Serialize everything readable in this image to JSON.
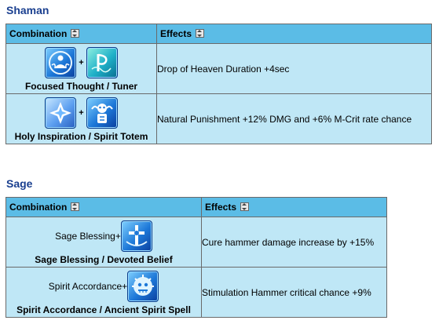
{
  "sections": [
    {
      "title": "Shaman",
      "headers": {
        "combination": "Combination",
        "effects": "Effects"
      },
      "rows": [
        {
          "lead": "",
          "label": "Focused Thought / Tuner",
          "icons": [
            "focused-thought-icon",
            "tuner-icon"
          ],
          "effect": "Drop of Heaven Duration +4sec"
        },
        {
          "lead": "",
          "label": "Holy Inspiration / Spirit Totem",
          "icons": [
            "holy-inspiration-icon",
            "spirit-totem-icon"
          ],
          "effect": "Natural Punishment +12% DMG and +6% M-Crit rate chance"
        }
      ]
    },
    {
      "title": "Sage",
      "headers": {
        "combination": "Combination",
        "effects": "Effects"
      },
      "rows": [
        {
          "lead": "Sage Blessing+",
          "label": "Sage Blessing / Devoted Belief",
          "icons": [
            "devoted-belief-icon"
          ],
          "effect": "Cure hammer damage increase by +15%"
        },
        {
          "lead": "Spirit Accordance+",
          "label": "Spirit Accordance / Ancient Spirit Spell",
          "icons": [
            "ancient-spirit-spell-icon"
          ],
          "effect": "Stimulation Hammer critical chance +9%"
        }
      ]
    }
  ],
  "plus_sign": "+"
}
